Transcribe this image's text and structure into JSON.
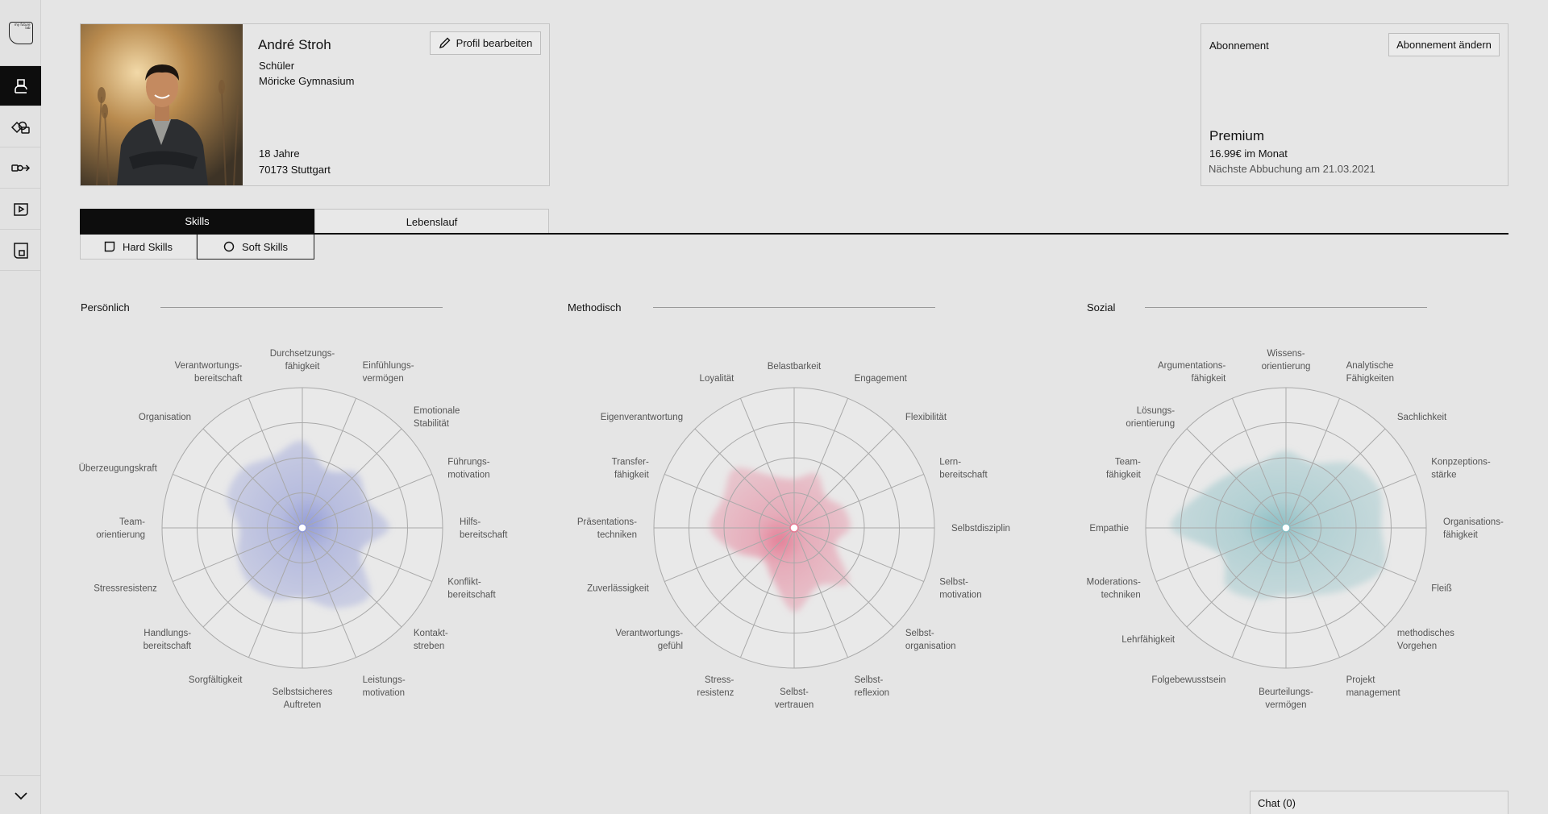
{
  "sidebar": {
    "logo_text": "my future lab",
    "items": [
      {
        "name": "profile",
        "icon": "person-icon",
        "active": true
      },
      {
        "name": "shapes",
        "icon": "shapes-icon",
        "active": false
      },
      {
        "name": "path",
        "icon": "path-arrow-icon",
        "active": false
      },
      {
        "name": "video",
        "icon": "play-icon",
        "active": false
      },
      {
        "name": "portfolio",
        "icon": "portfolio-icon",
        "active": false
      }
    ]
  },
  "profile": {
    "name": "André Stroh",
    "role": "Schüler",
    "school": "Möricke Gymnasium",
    "age": "18 Jahre",
    "city": "70173 Stuttgart",
    "edit_label": "Profil bearbeiten"
  },
  "subscription": {
    "title": "Abonnement",
    "change_label": "Abonnement ändern",
    "plan": "Premium",
    "price": "16.99€ im Monat",
    "next_charge": "Nächste Abbuchung am 21.03.2021"
  },
  "tabs": {
    "skills": "Skills",
    "cv": "Lebenslauf",
    "hard": "Hard Skills",
    "soft": "Soft Skills"
  },
  "sections": {
    "personal": "Persönlich",
    "method": "Methodisch",
    "social": "Sozial"
  },
  "chat": {
    "label": "Chat (0)"
  },
  "colors": {
    "personal": "#8d97d6",
    "method": "#e47a93",
    "social": "#86bcc2",
    "active": "#0d0d0d"
  },
  "chart_data": [
    {
      "type": "radar",
      "title": "Persönlich",
      "labels": [
        [
          "Durchsetzungs-",
          "fähigkeit"
        ],
        [
          "Einfühlungs-",
          "vermögen"
        ],
        [
          "Emotionale",
          "Stabilität"
        ],
        [
          "Führungs-",
          "motivation"
        ],
        [
          "Hilfs-",
          "bereitschaft"
        ],
        [
          "Konflikt-",
          "bereitschaft"
        ],
        [
          "Kontakt-",
          "streben"
        ],
        [
          "Leistungs-",
          "motivation"
        ],
        [
          "Selbstsicheres",
          "Auftreten"
        ],
        [
          "Sorgfältigkeit"
        ],
        [
          "Handlungs-",
          "bereitschaft"
        ],
        [
          "Stressresistenz"
        ],
        [
          "Team-",
          "orientierung"
        ],
        [
          "Überzeugungskraft"
        ],
        [
          "Organisation"
        ],
        [
          "Verantwortungs-",
          "bereitschaft"
        ]
      ],
      "values": [
        0.62,
        0.45,
        0.55,
        0.5,
        0.62,
        0.45,
        0.68,
        0.62,
        0.5,
        0.55,
        0.55,
        0.5,
        0.45,
        0.58,
        0.6,
        0.55
      ],
      "max": 1,
      "rings": 4
    },
    {
      "type": "radar",
      "title": "Methodisch",
      "labels": [
        [
          "Belastbarkeit"
        ],
        [
          "Engagement"
        ],
        [
          "Flexibilität"
        ],
        [
          "Lern-",
          "bereitschaft"
        ],
        [
          "Selbstdisziplin"
        ],
        [
          "Selbst-",
          "motivation"
        ],
        [
          "Selbst-",
          "organisation"
        ],
        [
          "Selbst-",
          "reflexion"
        ],
        [
          "Selbst-",
          "vertrauen"
        ],
        [
          "Stress-",
          "resistenz"
        ],
        [
          "Verantwortungs-",
          "gefühl"
        ],
        [
          "Zuverlässigkeit"
        ],
        [
          "Präsentations-",
          "techniken"
        ],
        [
          "Transfer-",
          "fähigkeit"
        ],
        [
          "Eigenverantwortung"
        ],
        [
          "Loyalität"
        ]
      ],
      "values": [
        0.35,
        0.42,
        0.32,
        0.38,
        0.4,
        0.32,
        0.55,
        0.45,
        0.6,
        0.4,
        0.32,
        0.45,
        0.6,
        0.55,
        0.6,
        0.4
      ],
      "max": 1,
      "rings": 4
    },
    {
      "type": "radar",
      "title": "Sozial",
      "labels": [
        [
          "Wissens-",
          "orientierung"
        ],
        [
          "Analytische",
          "Fähigkeiten"
        ],
        [
          "Sachlichkeit"
        ],
        [
          "Konpzeptions-",
          "stärke"
        ],
        [
          "Organisations-",
          "fähigkeit"
        ],
        [
          "Fleiß"
        ],
        [
          "methodisches",
          "Vorgehen"
        ],
        [
          "Projekt",
          "management"
        ],
        [
          "Beurteilungs-",
          "vermögen"
        ],
        [
          "Folgebewusstsein"
        ],
        [
          "Lehrfähigkeit"
        ],
        [
          "Moderations-",
          "techniken"
        ],
        [
          "Empathie"
        ],
        [
          "Team-",
          "fähigkeit"
        ],
        [
          "Lösungs-",
          "orientierung"
        ],
        [
          "Argumentations-",
          "fähigkeit"
        ]
      ],
      "values": [
        0.55,
        0.5,
        0.65,
        0.72,
        0.68,
        0.75,
        0.62,
        0.52,
        0.48,
        0.55,
        0.6,
        0.5,
        0.82,
        0.65,
        0.55,
        0.5
      ],
      "max": 1,
      "rings": 4
    }
  ]
}
